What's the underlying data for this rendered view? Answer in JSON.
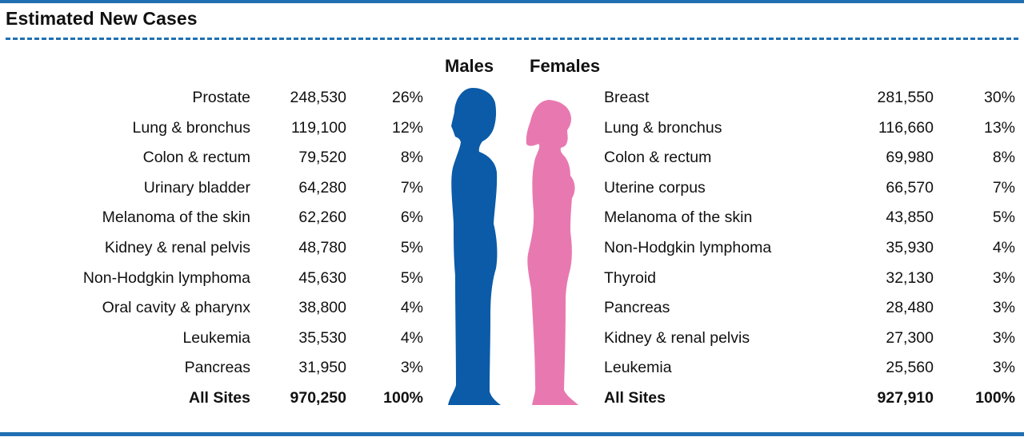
{
  "colors": {
    "rule": "#1f6fb2",
    "males": "#0b5ba8",
    "females": "#e879b0"
  },
  "title": "Estimated New Cases",
  "headers": {
    "males": "Males",
    "females": "Females"
  },
  "icons": {
    "males": "male-silhouette-icon",
    "females": "female-silhouette-icon"
  },
  "chart_data": {
    "type": "table",
    "title": "Estimated New Cases",
    "series": [
      {
        "name": "Males",
        "sites": [
          "Prostate",
          "Lung & bronchus",
          "Colon & rectum",
          "Urinary bladder",
          "Melanoma of the skin",
          "Kidney & renal pelvis",
          "Non-Hodgkin lymphoma",
          "Oral cavity & pharynx",
          "Leukemia",
          "Pancreas"
        ],
        "counts": [
          "248,530",
          "119,100",
          "79,520",
          "64,280",
          "62,260",
          "48,780",
          "45,630",
          "38,800",
          "35,530",
          "31,950"
        ],
        "percents": [
          "26%",
          "12%",
          "8%",
          "7%",
          "6%",
          "5%",
          "5%",
          "4%",
          "4%",
          "3%"
        ],
        "total": {
          "label": "All Sites",
          "count": "970,250",
          "percent": "100%"
        }
      },
      {
        "name": "Females",
        "sites": [
          "Breast",
          "Lung & bronchus",
          "Colon & rectum",
          "Uterine corpus",
          "Melanoma of the skin",
          "Non-Hodgkin lymphoma",
          "Thyroid",
          "Pancreas",
          "Kidney & renal pelvis",
          "Leukemia"
        ],
        "counts": [
          "281,550",
          "116,660",
          "69,980",
          "66,570",
          "43,850",
          "35,930",
          "32,130",
          "28,480",
          "27,300",
          "25,560"
        ],
        "percents": [
          "30%",
          "13%",
          "8%",
          "7%",
          "5%",
          "4%",
          "3%",
          "3%",
          "3%",
          "3%"
        ],
        "total": {
          "label": "All Sites",
          "count": "927,910",
          "percent": "100%"
        }
      }
    ]
  }
}
